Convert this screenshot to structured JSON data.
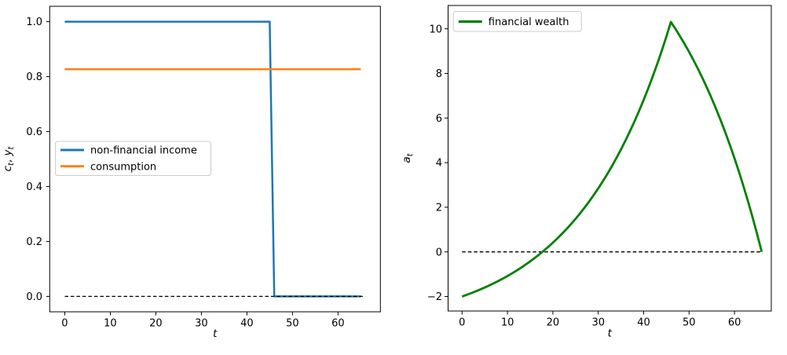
{
  "figure": {
    "background": "#ffffff",
    "subplot_count": 2,
    "colors": {
      "income_blue": "#1f77b4",
      "consumption_orange": "#ff7f0e",
      "wealth_green": "#008000",
      "zero_line_black": "#000000"
    }
  },
  "chart_data": [
    {
      "name": "income-and-consumption",
      "type": "line",
      "title": "",
      "xlabel": "t",
      "ylabel": "c_t, y_t",
      "grid": false,
      "xlim": [
        -3.3,
        69.3
      ],
      "ylim": [
        -0.056,
        1.056
      ],
      "x_ticks": [
        0,
        10,
        20,
        30,
        40,
        50,
        60
      ],
      "y_ticks": [
        [
          0.0,
          "0.0"
        ],
        [
          0.2,
          "0.2"
        ],
        [
          0.4,
          "0.4"
        ],
        [
          0.6,
          "0.6"
        ],
        [
          0.8,
          "0.8"
        ],
        [
          1.0,
          "1.0"
        ]
      ],
      "legend_position": "center left",
      "series": [
        {
          "name": "non-financial income",
          "color": "#1f77b4",
          "lw": 2.5,
          "dashed": false,
          "in_legend": true,
          "x": [
            0,
            45,
            46,
            65
          ],
          "y": [
            1.0,
            1.0,
            0.0,
            0.0
          ]
        },
        {
          "name": "consumption",
          "color": "#ff7f0e",
          "lw": 2.5,
          "dashed": false,
          "in_legend": true,
          "x": [
            0,
            65
          ],
          "y": [
            0.827,
            0.827
          ]
        },
        {
          "name": "zero line",
          "color": "#000000",
          "lw": 1.3,
          "dashed": true,
          "in_legend": false,
          "x": [
            0,
            66
          ],
          "y": [
            0,
            0
          ]
        }
      ]
    },
    {
      "name": "financial-wealth",
      "type": "line",
      "title": "",
      "xlabel": "t",
      "ylabel": "a_t",
      "grid": false,
      "xlim": [
        -3.08,
        68.11
      ],
      "ylim": [
        -2.651,
        11.045
      ],
      "x_ticks": [
        0,
        10,
        20,
        30,
        40,
        50,
        60
      ],
      "y_ticks": [
        [
          -2,
          "−2"
        ],
        [
          0,
          "0"
        ],
        [
          2,
          "2"
        ],
        [
          4,
          "4"
        ],
        [
          6,
          "6"
        ],
        [
          8,
          "8"
        ],
        [
          10,
          "10"
        ]
      ],
      "legend_position": "upper left",
      "series": [
        {
          "name": "zero line",
          "color": "#000000",
          "lw": 1.3,
          "dashed": true,
          "in_legend": false,
          "x": [
            0,
            66
          ],
          "y": [
            0,
            0
          ]
        },
        {
          "name": "financial wealth",
          "color": "#008000",
          "lw": 2.8,
          "dashed": false,
          "in_legend": true,
          "y": [
            -2.0,
            -1.927,
            -1.85,
            -1.77,
            -1.686,
            -1.597,
            -1.504,
            -1.406,
            -1.303,
            -1.196,
            -1.082,
            -0.963,
            -0.839,
            -0.708,
            -0.57,
            -0.426,
            -0.274,
            -0.115,
            0.053,
            0.228,
            0.412,
            0.606,
            0.809,
            1.023,
            1.247,
            1.482,
            1.729,
            1.989,
            2.261,
            2.547,
            2.847,
            3.163,
            3.494,
            3.841,
            4.206,
            4.59,
            4.992,
            5.415,
            5.858,
            6.324,
            6.814,
            7.327,
            7.867,
            8.433,
            9.027,
            9.652,
            10.307,
            9.996,
            9.668,
            9.325,
            8.964,
            8.585,
            8.187,
            7.77,
            7.331,
            6.871,
            6.387,
            5.879,
            5.346,
            4.787,
            4.199,
            3.582,
            2.934,
            2.253,
            1.539,
            0.789,
            0.001
          ]
        }
      ]
    }
  ]
}
